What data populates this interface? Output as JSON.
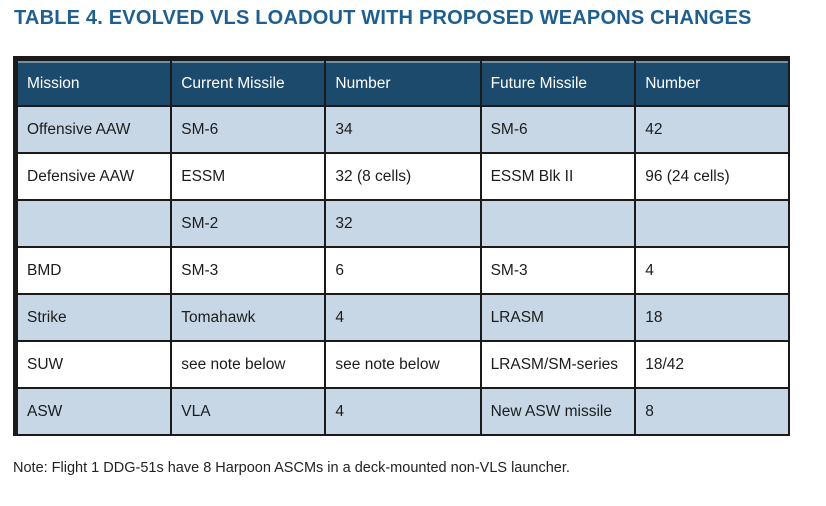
{
  "title": "TABLE 4. EVOLVED VLS LOADOUT WITH PROPOSED WEAPONS CHANGES",
  "table": {
    "headers": [
      "Mission",
      "Current Missile",
      "Number",
      "Future Missile",
      "Number"
    ],
    "rows": [
      [
        "Offensive AAW",
        "SM-6",
        "34",
        "SM-6",
        "42"
      ],
      [
        "Defensive AAW",
        "ESSM",
        "32 (8 cells)",
        "ESSM Blk II",
        "96 (24 cells)"
      ],
      [
        "",
        "SM-2",
        "32",
        "",
        ""
      ],
      [
        "BMD",
        "SM-3",
        "6",
        "SM-3",
        "4"
      ],
      [
        "Strike",
        "Tomahawk",
        "4",
        "LRASM",
        "18"
      ],
      [
        "SUW",
        "see note below",
        "see note below",
        "LRASM/SM-series",
        "18/42"
      ],
      [
        "ASW",
        "VLA",
        "4",
        "New ASW missile",
        "8"
      ]
    ]
  },
  "note": "Note: Flight 1 DDG-51s have 8 Harpoon ASCMs in a deck-mounted non-VLS launcher."
}
